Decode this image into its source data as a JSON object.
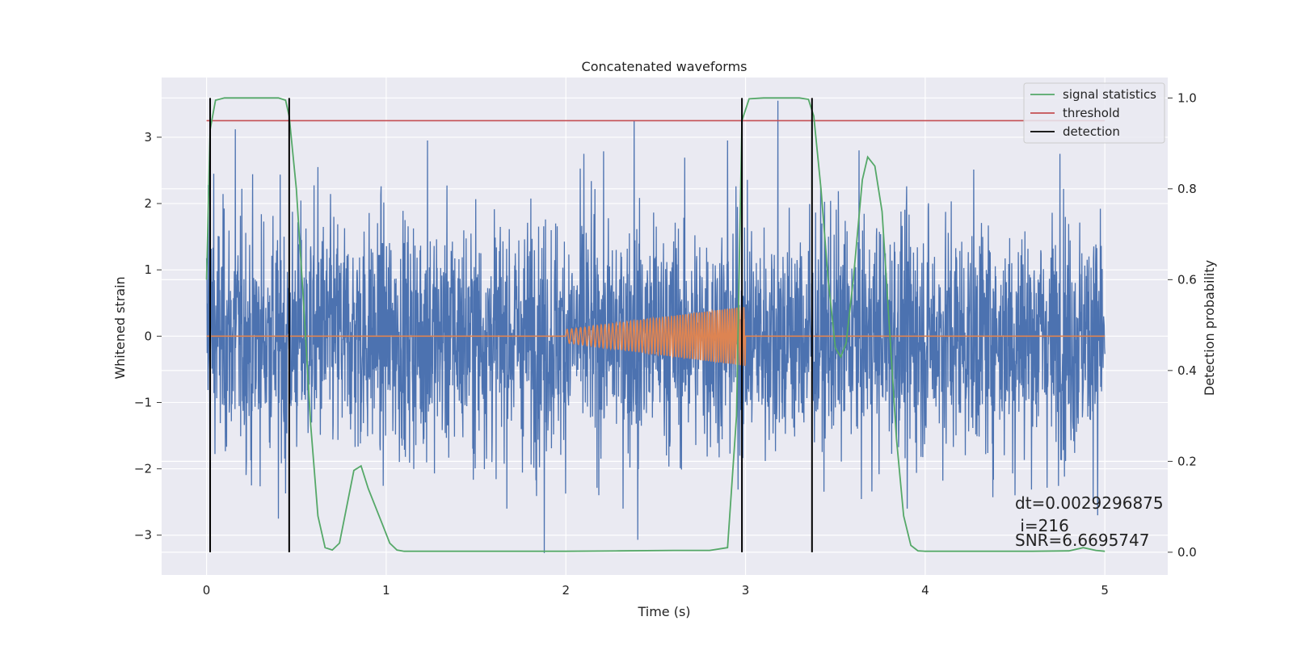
{
  "chart_data": {
    "type": "line",
    "title": "Concatenated waveforms",
    "xlabel": "Time (s)",
    "ylabel_left": "Whitened strain",
    "ylabel_right": "Detection probability",
    "xlim": [
      -0.25,
      5.35
    ],
    "ylim_left": [
      -3.6,
      3.9
    ],
    "ylim_right": [
      -0.05,
      1.045
    ],
    "x_ticks": [
      0,
      1,
      2,
      3,
      4,
      5
    ],
    "y_left_ticks": [
      -3,
      -2,
      -1,
      0,
      1,
      2,
      3
    ],
    "y_right_ticks": [
      0.0,
      0.2,
      0.4,
      0.6,
      0.8,
      1.0
    ],
    "grid": true,
    "legend_position": "top-right",
    "colors": {
      "strain": "#4c72b0",
      "template": "#dd8452",
      "signal_statistics": "#55a868",
      "threshold": "#c44e52",
      "detection": "#000000",
      "background": "#eaeaf2"
    },
    "legend": [
      {
        "label": "signal statistics",
        "color": "#55a868"
      },
      {
        "label": "threshold",
        "color": "#c44e52"
      },
      {
        "label": "detection",
        "color": "#000000"
      }
    ],
    "strain_noise": {
      "x_start": 0.0,
      "x_end": 5.0,
      "typical_range": [
        -2.6,
        2.8
      ]
    },
    "template": {
      "x_start": 2.0,
      "x_end": 3.0,
      "amplitude_start": 0.1,
      "amplitude_end": 0.45
    },
    "threshold": {
      "value": 0.95,
      "x_start": 0.0,
      "x_end": 5.0
    },
    "detections": [
      0.02,
      0.46,
      2.98,
      3.37
    ],
    "signal_statistics": {
      "x": [
        0.0,
        0.02,
        0.05,
        0.1,
        0.2,
        0.4,
        0.44,
        0.46,
        0.5,
        0.54,
        0.58,
        0.62,
        0.66,
        0.7,
        0.74,
        0.78,
        0.82,
        0.86,
        0.9,
        0.94,
        0.98,
        1.02,
        1.06,
        1.1,
        1.5,
        2.0,
        2.3,
        2.6,
        2.8,
        2.9,
        2.95,
        2.98,
        3.02,
        3.1,
        3.3,
        3.35,
        3.38,
        3.42,
        3.46,
        3.5,
        3.53,
        3.56,
        3.6,
        3.65,
        3.68,
        3.72,
        3.76,
        3.8,
        3.84,
        3.88,
        3.92,
        3.96,
        4.0,
        4.2,
        4.6,
        4.8,
        4.88,
        4.95,
        5.0
      ],
      "y": [
        0.6,
        0.93,
        0.995,
        1.0,
        1.0,
        1.0,
        0.995,
        0.96,
        0.8,
        0.55,
        0.28,
        0.08,
        0.01,
        0.005,
        0.02,
        0.1,
        0.18,
        0.19,
        0.14,
        0.1,
        0.06,
        0.02,
        0.005,
        0.002,
        0.002,
        0.002,
        0.003,
        0.004,
        0.004,
        0.01,
        0.3,
        0.95,
        0.998,
        1.0,
        1.0,
        0.997,
        0.96,
        0.8,
        0.6,
        0.45,
        0.43,
        0.46,
        0.6,
        0.82,
        0.87,
        0.85,
        0.75,
        0.5,
        0.25,
        0.08,
        0.015,
        0.003,
        0.002,
        0.002,
        0.002,
        0.003,
        0.01,
        0.004,
        0.002
      ]
    },
    "strain_spikes": [
      {
        "x": 0.01,
        "y": 2.28
      },
      {
        "x": 0.04,
        "y": 2.45
      },
      {
        "x": 0.16,
        "y": 3.12
      },
      {
        "x": 0.25,
        "y": -2.25
      },
      {
        "x": 0.4,
        "y": -2.75
      },
      {
        "x": 0.44,
        "y": -2.37
      },
      {
        "x": 0.62,
        "y": 2.55
      },
      {
        "x": 1.23,
        "y": 2.95
      },
      {
        "x": 1.88,
        "y": -3.27
      },
      {
        "x": 2.1,
        "y": 2.75
      },
      {
        "x": 2.38,
        "y": 3.25
      },
      {
        "x": 2.4,
        "y": -3.07
      },
      {
        "x": 2.9,
        "y": 2.95
      },
      {
        "x": 3.18,
        "y": 3.55
      },
      {
        "x": 3.9,
        "y": -2.6
      },
      {
        "x": 4.5,
        "y": -2.4
      },
      {
        "x": 4.75,
        "y": 2.75
      },
      {
        "x": 4.96,
        "y": -2.7
      }
    ],
    "annotation": {
      "line1": "dt=0.0029296875",
      "line2": " i=216",
      "line3": "SNR=6.6695747"
    }
  }
}
